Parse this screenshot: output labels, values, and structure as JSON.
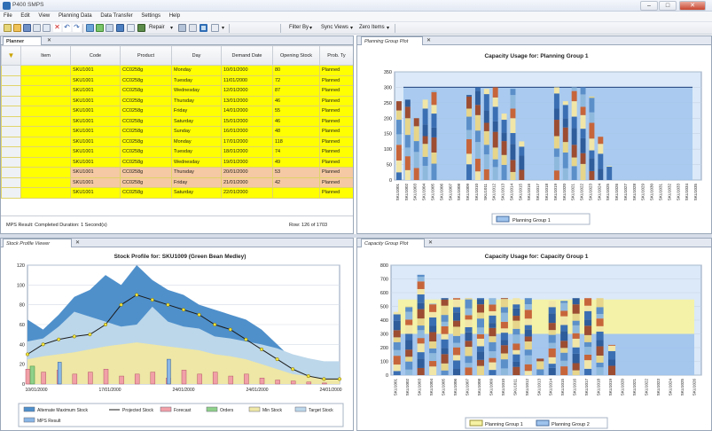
{
  "window": {
    "title": "P400 SMPS",
    "min": "–",
    "max": "□",
    "close": "✕"
  },
  "menu": [
    "File",
    "Edit",
    "View",
    "Planning Data",
    "Data Transfer",
    "Settings",
    "Help"
  ],
  "toolbar": {
    "repair": "Repair",
    "filter_by": "Filter By",
    "sync_views": "Sync Views",
    "zero_items": "Zero Items"
  },
  "tabs": {
    "planner": "Planner",
    "stock_viewer": "Stock Profile Viewer",
    "planning_plot": "Planning Group Plot",
    "capacity_plot": "Capacity Group Plot"
  },
  "grid": {
    "columns": [
      "Item",
      "Code",
      "Product",
      "Day",
      "Demand Date",
      "Opening Stock",
      "Prob. Ty"
    ],
    "rows": [
      {
        "code": "SKU1001",
        "product": "CC0258g",
        "day": "Monday",
        "date": "10/01/2000",
        "stock": "80",
        "type": "Planned",
        "color": "#ffff00"
      },
      {
        "code": "SKU1001",
        "product": "CC0258g",
        "day": "Tuesday",
        "date": "11/01/2000",
        "stock": "72",
        "type": "Planned",
        "color": "#ffff00"
      },
      {
        "code": "SKU1001",
        "product": "CC0258g",
        "day": "Wednesday",
        "date": "12/01/2000",
        "stock": "87",
        "type": "Planned",
        "color": "#ffff00"
      },
      {
        "code": "SKU1001",
        "product": "CC0258g",
        "day": "Thursday",
        "date": "13/01/2000",
        "stock": "46",
        "type": "Planned",
        "color": "#ffff00"
      },
      {
        "code": "SKU1001",
        "product": "CC0258g",
        "day": "Friday",
        "date": "14/01/2000",
        "stock": "55",
        "type": "Planned",
        "color": "#ffff00"
      },
      {
        "code": "SKU1001",
        "product": "CC0258g",
        "day": "Saturday",
        "date": "15/01/2000",
        "stock": "46",
        "type": "Planned",
        "color": "#ffff00"
      },
      {
        "code": "SKU1001",
        "product": "CC0258g",
        "day": "Sunday",
        "date": "16/01/2000",
        "stock": "48",
        "type": "Planned",
        "color": "#ffff00"
      },
      {
        "code": "SKU1001",
        "product": "CC0258g",
        "day": "Monday",
        "date": "17/01/2000",
        "stock": "118",
        "type": "Planned",
        "color": "#ffff00"
      },
      {
        "code": "SKU1001",
        "product": "CC0258g",
        "day": "Tuesday",
        "date": "18/01/2000",
        "stock": "74",
        "type": "Planned",
        "color": "#ffff00"
      },
      {
        "code": "SKU1001",
        "product": "CC0258g",
        "day": "Wednesday",
        "date": "19/01/2000",
        "stock": "49",
        "type": "Planned",
        "color": "#ffff00"
      },
      {
        "code": "SKU1001",
        "product": "CC0258g",
        "day": "Thursday",
        "date": "20/01/2000",
        "stock": "53",
        "type": "Planned",
        "color": "#f5c9a3"
      },
      {
        "code": "SKU1001",
        "product": "CC0258g",
        "day": "Friday",
        "date": "21/01/2000",
        "stock": "42",
        "type": "Planned",
        "color": "#f5c9a3"
      },
      {
        "code": "SKU1001",
        "product": "CC0258g",
        "day": "Saturday",
        "date": "22/01/2000",
        "stock": "",
        "type": "Planned",
        "color": "#ffff00"
      }
    ],
    "status_left": "MPS Result: Completed Duration: 1 Second(s)",
    "status_right": "Row: 126 of 1703"
  },
  "chart_data": [
    {
      "type": "bar",
      "title": "Capacity Usage for: Planning Group 1",
      "categories": [
        "SKU1001",
        "SKU1002",
        "SKU1003",
        "SKU1004",
        "SKU1005",
        "SKU1006",
        "SKU1007",
        "SKU1008",
        "SKU1009",
        "SKU1010",
        "SKU1011",
        "SKU1012",
        "SKU1013",
        "SKU1014",
        "SKU1015",
        "SKU1016",
        "SKU1017",
        "SKU1018",
        "SKU1019",
        "SKU1020",
        "SKU1021",
        "SKU1022",
        "SKU1023",
        "SKU1024",
        "SKU1025",
        "SKU1026",
        "SKU1027",
        "SKU1028",
        "SKU1029",
        "SKU1030",
        "SKU1031",
        "SKU1032",
        "SKU1033",
        "SKU1034",
        "SKU1035"
      ],
      "values": [
        255,
        260,
        200,
        260,
        290,
        0,
        0,
        0,
        275,
        300,
        295,
        300,
        215,
        295,
        125,
        0,
        0,
        0,
        300,
        255,
        300,
        300,
        270,
        140,
        45,
        0,
        0,
        0,
        0,
        0,
        0,
        0,
        0,
        0,
        0
      ],
      "capacity": 300,
      "ylim": [
        0,
        350
      ],
      "yticks": [
        0,
        50,
        100,
        150,
        200,
        250,
        300,
        350
      ],
      "legend": [
        "Planning Group 1"
      ]
    },
    {
      "type": "area",
      "title": "Stock Profile for: SKU1009 (Green Bean Medley)",
      "x_labels": [
        "10/01/2000",
        "17/01/2000",
        "24/01/2000",
        "24/01/2000",
        "24/01/2000"
      ],
      "ylim": [
        0,
        120
      ],
      "yticks": [
        0,
        20,
        40,
        60,
        80,
        100,
        120
      ],
      "series": [
        {
          "name": "Alternate Maximum Stock",
          "values": [
            65,
            55,
            70,
            88,
            95,
            110,
            100,
            120,
            105,
            95,
            90,
            80,
            75,
            70,
            65,
            55,
            40,
            25,
            15,
            5,
            0
          ]
        },
        {
          "name": "Projected Stock",
          "values": [
            30,
            40,
            45,
            48,
            50,
            60,
            80,
            90,
            85,
            80,
            75,
            70,
            60,
            55,
            45,
            35,
            25,
            15,
            8,
            5,
            5
          ]
        },
        {
          "name": "Forecast",
          "values": [
            15,
            12,
            14,
            10,
            12,
            15,
            8,
            10,
            12,
            6,
            14,
            10,
            12,
            8,
            10,
            6,
            4,
            3,
            2,
            1,
            0
          ]
        },
        {
          "name": "Orders",
          "values": [
            18,
            0,
            0,
            0,
            0,
            0,
            0,
            0,
            0,
            0,
            0,
            0,
            0,
            0,
            0,
            0,
            0,
            0,
            0,
            0,
            0
          ]
        },
        {
          "name": "Min Stock",
          "values": [
            25,
            28,
            30,
            32,
            35,
            38,
            40,
            42,
            40,
            38,
            36,
            34,
            30,
            28,
            25,
            20,
            15,
            10,
            8,
            5,
            5
          ]
        },
        {
          "name": "Target Stock",
          "values": [
            20,
            25,
            40,
            55,
            50,
            45,
            35,
            40,
            60,
            45,
            40,
            38,
            30,
            28,
            25,
            22,
            18,
            12,
            8,
            5,
            5
          ]
        },
        {
          "name": "MPS Result",
          "values": [
            0,
            0,
            22,
            0,
            0,
            0,
            0,
            0,
            0,
            25,
            0,
            0,
            0,
            0,
            0,
            0,
            0,
            0,
            0,
            0,
            0
          ]
        }
      ],
      "legend": [
        "Alternate Maximum Stock",
        "Projected Stock",
        "Forecast",
        "Orders",
        "Min Stock",
        "Target Stock",
        "MPS Result"
      ]
    },
    {
      "type": "bar",
      "title": "Capacity Usage for: Capacity Group 1",
      "categories": [
        "SKU1001",
        "SKU1002",
        "SKU1003",
        "SKU1004",
        "SKU1005",
        "SKU1006",
        "SKU1007",
        "SKU1008",
        "SKU1009",
        "SKU1010",
        "SKU1011",
        "SKU1012",
        "SKU1013",
        "SKU1014",
        "SKU1015",
        "SKU1016",
        "SKU1017",
        "SKU1018",
        "SKU1019",
        "SKU1020",
        "SKU1021",
        "SKU1022",
        "SKU1023",
        "SKU1024",
        "SKU1025",
        "SKU1026"
      ],
      "values": [
        460,
        500,
        730,
        520,
        560,
        560,
        560,
        560,
        560,
        560,
        560,
        560,
        120,
        540,
        540,
        560,
        560,
        560,
        220,
        0,
        0,
        0,
        0,
        0,
        0,
        0
      ],
      "band": [
        300,
        550
      ],
      "ylim": [
        0,
        800
      ],
      "yticks": [
        0,
        100,
        200,
        300,
        400,
        500,
        600,
        700,
        800
      ],
      "legend": [
        "Planning Group 1",
        "Planning Group 2"
      ]
    }
  ]
}
